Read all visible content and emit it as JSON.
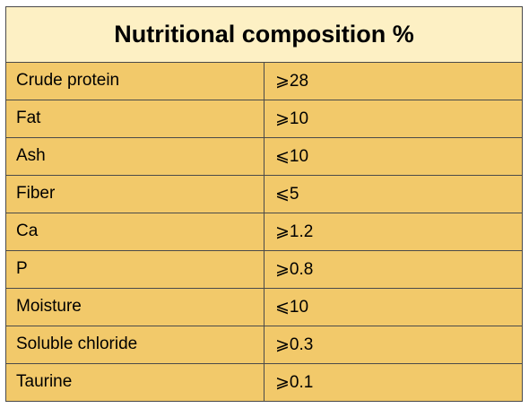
{
  "table": {
    "title": "Nutritional composition %",
    "rows": [
      {
        "name": "Crude protein",
        "value": "⩾28"
      },
      {
        "name": "Fat",
        "value": "⩾10"
      },
      {
        "name": "Ash",
        "value": "⩽10"
      },
      {
        "name": "Fiber",
        "value": "⩽5"
      },
      {
        "name": "Ca",
        "value": "⩾1.2"
      },
      {
        "name": "P",
        "value": "⩾0.8"
      },
      {
        "name": "Moisture",
        "value": "⩽10"
      },
      {
        "name": "Soluble chloride",
        "value": "⩾0.3"
      },
      {
        "name": "Taurine",
        "value": "⩾0.1"
      }
    ]
  },
  "colors": {
    "header_background": "#fdf0c4",
    "row_background": "#f2c96a",
    "border": "#4a4a4a"
  }
}
